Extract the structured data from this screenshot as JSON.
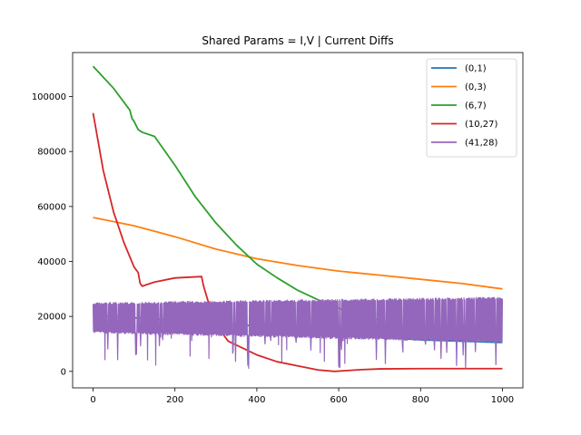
{
  "chart_data": {
    "type": "line",
    "title": "Shared Params = I,V | Current Diffs",
    "xlabel": "",
    "ylabel": "",
    "xlim": [
      -50,
      1050
    ],
    "ylim": [
      -6000,
      116000
    ],
    "xticks": [
      0,
      200,
      400,
      600,
      800,
      1000
    ],
    "yticks": [
      0,
      20000,
      40000,
      60000,
      80000,
      100000
    ],
    "grid": false,
    "legend_position": "top-right",
    "series": [
      {
        "name": "(0,1)",
        "color": "#1f77b4",
        "x": [
          0,
          100,
          200,
          300,
          400,
          500,
          600,
          700,
          800,
          900,
          1000
        ],
        "y": [
          20500,
          19500,
          18500,
          17500,
          16500,
          15000,
          13500,
          12500,
          11500,
          11000,
          10500
        ]
      },
      {
        "name": "(0,3)",
        "color": "#ff7f0e",
        "x": [
          0,
          100,
          200,
          300,
          400,
          500,
          600,
          700,
          800,
          900,
          1000
        ],
        "y": [
          56000,
          53000,
          49000,
          44500,
          41000,
          38500,
          36500,
          35000,
          33500,
          32000,
          30000
        ]
      },
      {
        "name": "(6,7)",
        "color": "#2ca02c",
        "x": [
          0,
          50,
          90,
          95,
          100,
          110,
          120,
          150,
          200,
          250,
          300,
          350,
          400,
          450,
          500,
          550,
          600,
          650,
          700,
          750,
          800,
          850,
          900,
          950,
          1000
        ],
        "y": [
          111000,
          103000,
          95000,
          92000,
          91000,
          88000,
          87000,
          85500,
          75000,
          63500,
          54000,
          46000,
          39000,
          34000,
          29500,
          26000,
          23000,
          20500,
          18500,
          16500,
          15000,
          13500,
          12500,
          11500,
          11000
        ]
      },
      {
        "name": "(10,27)",
        "color": "#d62728",
        "x": [
          0,
          25,
          50,
          75,
          100,
          110,
          115,
          120,
          150,
          200,
          265,
          270,
          280,
          300,
          330,
          400,
          450,
          500,
          550,
          590,
          650,
          700,
          800,
          900,
          1000
        ],
        "y": [
          94000,
          73000,
          58000,
          47000,
          38000,
          36000,
          32000,
          31000,
          32500,
          34000,
          34500,
          31000,
          26000,
          17000,
          11000,
          6000,
          3500,
          2000,
          500,
          0,
          600,
          900,
          1000,
          1000,
          1000
        ]
      },
      {
        "name": "(41,28)",
        "color": "#9467bd",
        "x": [
          0,
          1000
        ],
        "y_band": [
          [
            14000,
            25000
          ],
          [
            10500,
            27000
          ]
        ],
        "y_spike_min": 1000
      }
    ]
  }
}
